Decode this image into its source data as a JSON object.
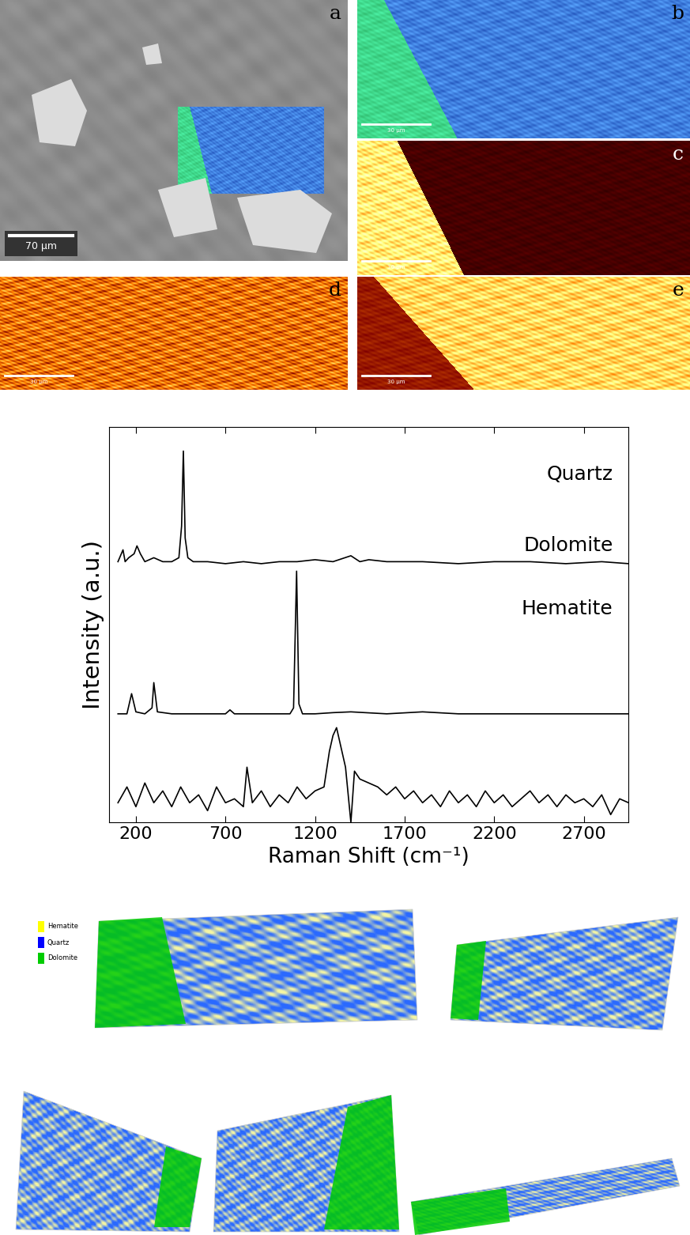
{
  "panels": [
    {
      "label": "a",
      "scale_bar": "70 µm"
    },
    {
      "label": "b",
      "scale_bar": "30 µm"
    },
    {
      "label": "c",
      "scale_bar": "30 µm"
    },
    {
      "label": "d",
      "scale_bar": "30 µm"
    },
    {
      "label": "e",
      "scale_bar": "30 µm"
    }
  ],
  "chart_data": {
    "type": "line",
    "xlabel": "Raman Shift (cm⁻¹)",
    "ylabel": "Intensity (a.u.)",
    "xlim": [
      50,
      2950
    ],
    "ylim": [
      0,
      10
    ],
    "xticks": [
      200,
      700,
      1200,
      1700,
      2200,
      2700
    ],
    "tick_labels": "x",
    "series": [
      {
        "name": "Quartz",
        "color": "#000000",
        "x": [
          100,
          128,
          140,
          160,
          190,
          206,
          225,
          250,
          300,
          350,
          400,
          440,
          455,
          465,
          475,
          490,
          520,
          600,
          700,
          800,
          900,
          1000,
          1100,
          1200,
          1300,
          1400,
          1450,
          1500,
          1600,
          1800,
          2000,
          2200,
          2400,
          2600,
          2800,
          2950
        ],
        "values": [
          6.6,
          6.9,
          6.6,
          6.7,
          6.8,
          7.0,
          6.8,
          6.6,
          6.7,
          6.6,
          6.6,
          6.7,
          7.5,
          9.4,
          7.2,
          6.7,
          6.6,
          6.6,
          6.55,
          6.6,
          6.55,
          6.6,
          6.6,
          6.65,
          6.6,
          6.75,
          6.6,
          6.65,
          6.6,
          6.6,
          6.55,
          6.6,
          6.6,
          6.55,
          6.6,
          6.55
        ]
      },
      {
        "name": "Dolomite",
        "color": "#000000",
        "x": [
          100,
          150,
          176,
          200,
          250,
          290,
          300,
          320,
          400,
          500,
          600,
          700,
          725,
          750,
          800,
          900,
          1000,
          1060,
          1080,
          1097,
          1110,
          1130,
          1200,
          1300,
          1400,
          1600,
          1800,
          2000,
          2200,
          2400,
          2600,
          2800,
          2950
        ],
        "values": [
          2.75,
          2.75,
          3.26,
          2.8,
          2.75,
          2.9,
          3.54,
          2.8,
          2.75,
          2.75,
          2.75,
          2.75,
          2.85,
          2.75,
          2.75,
          2.75,
          2.75,
          2.75,
          2.9,
          6.36,
          3.0,
          2.75,
          2.75,
          2.78,
          2.8,
          2.75,
          2.8,
          2.75,
          2.75,
          2.75,
          2.75,
          2.75,
          2.75
        ]
      },
      {
        "name": "Hematite",
        "color": "#000000",
        "x": [
          100,
          150,
          200,
          250,
          300,
          350,
          400,
          450,
          500,
          550,
          600,
          650,
          700,
          750,
          800,
          820,
          850,
          900,
          950,
          1000,
          1050,
          1100,
          1150,
          1200,
          1250,
          1280,
          1300,
          1320,
          1340,
          1370,
          1400,
          1420,
          1450,
          1500,
          1550,
          1600,
          1650,
          1700,
          1750,
          1800,
          1850,
          1900,
          1950,
          2000,
          2050,
          2100,
          2150,
          2200,
          2250,
          2300,
          2350,
          2400,
          2450,
          2500,
          2550,
          2600,
          2650,
          2700,
          2750,
          2800,
          2850,
          2900,
          2950
        ],
        "values": [
          0.5,
          0.9,
          0.4,
          1.0,
          0.5,
          0.8,
          0.4,
          0.9,
          0.5,
          0.7,
          0.3,
          0.9,
          0.5,
          0.6,
          0.4,
          1.4,
          0.5,
          0.8,
          0.4,
          0.7,
          0.5,
          0.9,
          0.6,
          0.8,
          0.9,
          1.8,
          2.2,
          2.4,
          2.0,
          1.4,
          0.0,
          1.3,
          1.1,
          1.0,
          0.9,
          0.7,
          0.9,
          0.6,
          0.8,
          0.5,
          0.7,
          0.4,
          0.8,
          0.5,
          0.7,
          0.4,
          0.8,
          0.5,
          0.7,
          0.4,
          0.6,
          0.8,
          0.5,
          0.7,
          0.4,
          0.7,
          0.5,
          0.6,
          0.4,
          0.7,
          0.2,
          0.6,
          0.5
        ]
      }
    ]
  },
  "render_legend": [
    {
      "name": "Hematite",
      "color": "#ffff00"
    },
    {
      "name": "Quartz",
      "color": "#0000ff"
    },
    {
      "name": "Dolomite",
      "color": "#00cc00"
    }
  ]
}
